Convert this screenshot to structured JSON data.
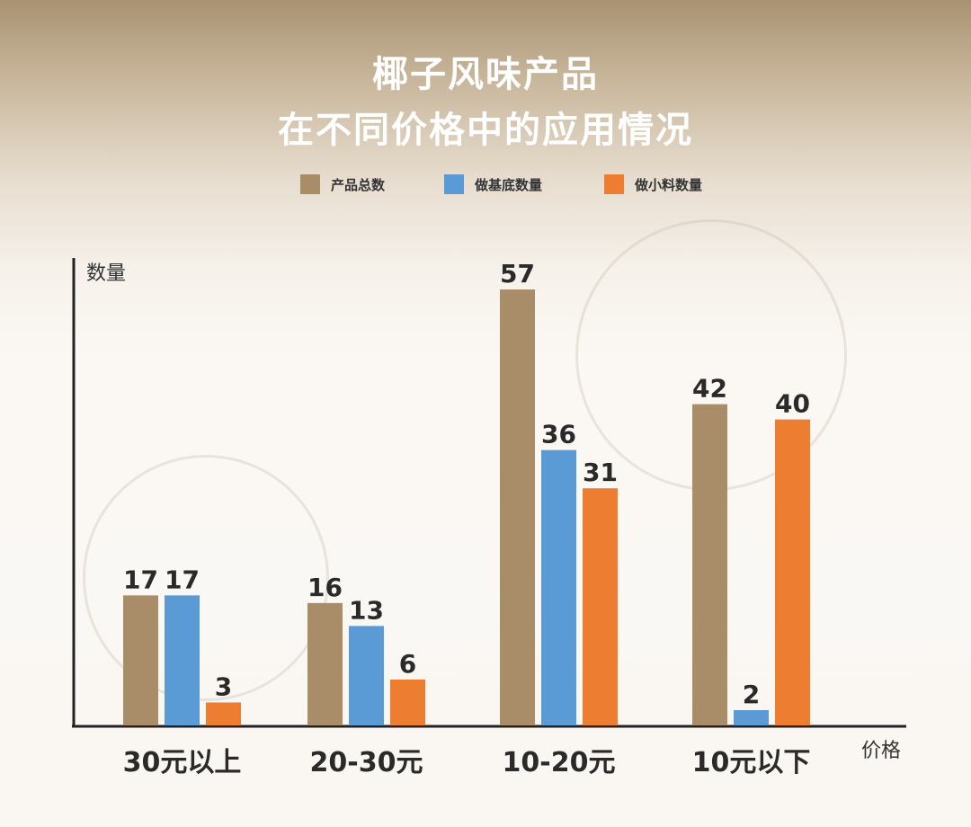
{
  "title_line1": "椰子风味产品",
  "title_line2": "在不同价格中的应用情况",
  "colors": {
    "total": "#a88d68",
    "base": "#5b9bd5",
    "topping": "#ed7d31"
  },
  "chart_data": {
    "type": "bar",
    "categories": [
      "30元以上",
      "20-30元",
      "10-20元",
      "10元以下"
    ],
    "series": [
      {
        "name": "产品总数",
        "values": [
          17,
          16,
          57,
          42
        ]
      },
      {
        "name": "做基底数量",
        "values": [
          17,
          13,
          36,
          2
        ]
      },
      {
        "name": "做小料数量",
        "values": [
          3,
          6,
          31,
          40
        ]
      }
    ],
    "ylabel": "数量",
    "xlabel": "价格",
    "legend_position": "top-center",
    "grid": false
  }
}
